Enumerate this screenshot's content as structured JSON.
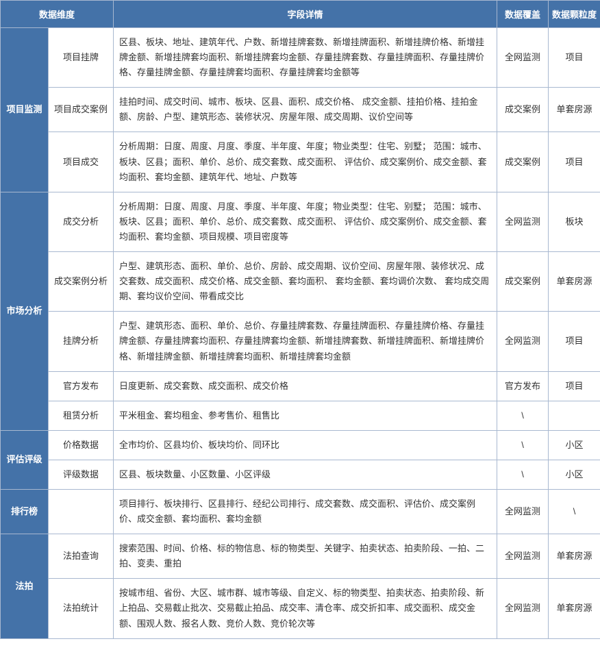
{
  "table": {
    "header_bg": "#4472a8",
    "header_fg": "#ffffff",
    "border_color": "#a8b8d0",
    "columns": [
      {
        "key": "dim",
        "label": "数据维度"
      },
      {
        "key": "detail",
        "label": "字段详情"
      },
      {
        "key": "coverage",
        "label": "数据覆盖"
      },
      {
        "key": "gran",
        "label": "数据颗粒度"
      }
    ],
    "groups": [
      {
        "category": "项目监测",
        "rows": [
          {
            "subcat": "项目挂牌",
            "detail": "区县、板块、地址、建筑年代、户数、新增挂牌套数、新增挂牌面积、新增挂牌价格、新增挂牌金额、新增挂牌套均面积、新增挂牌套均金额、存量挂牌套数、存量挂牌面积、存量挂牌价格、存量挂牌金额、存量挂牌套均面积、存量挂牌套均金额等",
            "coverage": "全网监测",
            "gran": "项目"
          },
          {
            "subcat": "项目成交案例",
            "detail": "挂拍时间、成交时间、城市、板块、区县、面积、成交价格、 成交金额、挂拍价格、挂拍金额、房龄、户型、建筑形态、装修状况、房屋年限、成交周期、议价空间等",
            "coverage": "成交案例",
            "gran": "单套房源"
          },
          {
            "subcat": "项目成交",
            "detail": "分析周期：日度、周度、月度、季度、半年度、年度；物业类型：住宅、别墅； 范围：城市、板块、区县；面积、单价、总价、成交套数、成交面积、 评估价、成交案例价、成交金额、套均面积、套均金额、建筑年代、地址、户数等",
            "coverage": "成交案例",
            "gran": "项目"
          }
        ]
      },
      {
        "category": "市场分析",
        "rows": [
          {
            "subcat": "成交分析",
            "detail": "分析周期：日度、周度、月度、季度、半年度、年度；物业类型：住宅、别墅； 范围：城市、板块、区县；面积、单价、总价、成交套数、成交面积、 评估价、成交案例价、成交金额、套均面积、套均金额、项目规模、项目密度等",
            "coverage": "全网监测",
            "gran": "板块"
          },
          {
            "subcat": "成交案例分析",
            "detail": "户型、建筑形态、面积、单价、总价、房龄、成交周期、议价空间、房屋年限、装修状况、成交套数、成交面积、成交价格、成交金额、套均面积、 套均金额、套均调价次数、 套均成交周期、套均议价空间、带看成交比",
            "coverage": "成交案例",
            "gran": "单套房源"
          },
          {
            "subcat": "挂牌分析",
            "detail": "户型、建筑形态、面积、单价、总价、存量挂牌套数、存量挂牌面积、存量挂牌价格、存量挂牌金额、存量挂牌套均面积、存量挂牌套均金额、新增挂牌套数、新增挂牌面积、新增挂牌价格、新增挂牌金额、新增挂牌套均面积、新增挂牌套均金额",
            "coverage": "全网监测",
            "gran": "项目"
          },
          {
            "subcat": "官方发布",
            "detail": "日度更新、成交套数、成交面积、成交价格",
            "coverage": "官方发布",
            "gran": "项目"
          },
          {
            "subcat": "租赁分析",
            "detail": "平米租金、套均租金、参考售价、租售比",
            "coverage": "\\",
            "gran": ""
          }
        ]
      },
      {
        "category": "评估评级",
        "rows": [
          {
            "subcat": "价格数据",
            "detail": "全市均价、区县均价、板块均价、同环比",
            "coverage": "\\",
            "gran": "小区"
          },
          {
            "subcat": "评级数据",
            "detail": "区县、板块数量、小区数量、小区评级",
            "coverage": "\\",
            "gran": "小区"
          }
        ]
      },
      {
        "category": "排行榜",
        "rows": [
          {
            "subcat": "",
            "detail": "项目排行、板块排行、区县排行、经纪公司排行、成交套数、成交面积、评估价、成交案例价、成交金额、套均面积、套均金额",
            "coverage": "全网监测",
            "gran": "\\"
          }
        ]
      },
      {
        "category": "法拍",
        "rows": [
          {
            "subcat": "法拍查询",
            "detail": "搜索范围、时间、价格、标的物信息、标的物类型、关键字、拍卖状态、拍卖阶段、一拍、二拍、变卖、重拍",
            "coverage": "全网监测",
            "gran": "单套房源"
          },
          {
            "subcat": "法拍统计",
            "detail": "按城市组、省份、大区、城市群、城市等级、自定义、标的物类型、拍卖状态、拍卖阶段、新上拍品、交易截止批次、交易截止拍品、成交率、清仓率、成交折扣率、成交面积、成交金额、围观人数、报名人数、竞价人数、竞价轮次等",
            "coverage": "全网监测",
            "gran": "单套房源"
          }
        ]
      }
    ]
  }
}
